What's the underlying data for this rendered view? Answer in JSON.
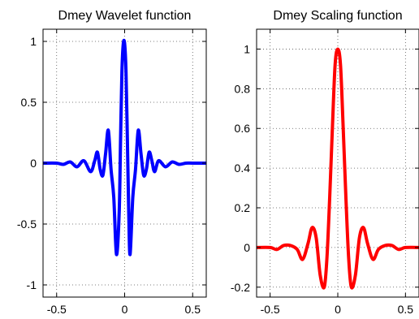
{
  "figure": {
    "background": "#ffffff"
  },
  "chart_data": [
    {
      "type": "line",
      "title": "Dmey Wavelet function",
      "xlabel": "",
      "ylabel": "",
      "xlim": [
        -0.6,
        0.6
      ],
      "ylim": [
        -1.1,
        1.1
      ],
      "xticks": [
        -0.5,
        0,
        0.5
      ],
      "yticks": [
        -1,
        -0.5,
        0,
        0.5,
        1
      ],
      "xtick_labels": [
        "-0.5",
        "0",
        "0.5"
      ],
      "ytick_labels": [
        "-1",
        "-0.5",
        "0",
        "0.5",
        "1"
      ],
      "grid": true,
      "series": [
        {
          "color": "#0000ff",
          "x": [
            -0.6,
            -0.5,
            -0.45,
            -0.4,
            -0.35,
            -0.3,
            -0.25,
            -0.22,
            -0.2,
            -0.18,
            -0.16,
            -0.14,
            -0.12,
            -0.1,
            -0.08,
            -0.06,
            -0.04,
            -0.03,
            -0.02,
            -0.01,
            0,
            0.01,
            0.02,
            0.03,
            0.04,
            0.06,
            0.08,
            0.1,
            0.12,
            0.14,
            0.16,
            0.18,
            0.2,
            0.22,
            0.25,
            0.3,
            0.35,
            0.4,
            0.45,
            0.5,
            0.6
          ],
          "y": [
            0,
            0,
            -0.01,
            0.01,
            -0.03,
            0.02,
            -0.07,
            0.02,
            0.09,
            -0.05,
            -0.1,
            0.08,
            0.27,
            -0.05,
            -0.28,
            -0.75,
            -0.4,
            0.2,
            0.75,
            0.98,
            0.98,
            0.75,
            0.2,
            -0.4,
            -0.75,
            -0.28,
            -0.05,
            0.27,
            0.08,
            -0.1,
            -0.05,
            0.09,
            0.02,
            -0.07,
            0.02,
            -0.03,
            0.01,
            -0.01,
            0,
            0,
            0
          ]
        }
      ]
    },
    {
      "type": "line",
      "title": "Dmey Scaling function",
      "xlabel": "",
      "ylabel": "",
      "xlim": [
        -0.6,
        0.6
      ],
      "ylim": [
        -0.25,
        1.1
      ],
      "xticks": [
        -0.5,
        0,
        0.5
      ],
      "yticks": [
        -0.2,
        0,
        0.2,
        0.4,
        0.6,
        0.8,
        1
      ],
      "xtick_labels": [
        "-0.5",
        "0",
        "0.5"
      ],
      "ytick_labels": [
        "-0.2",
        "0",
        "0.2",
        "0.4",
        "0.6",
        "0.8",
        "1"
      ],
      "grid": true,
      "series": [
        {
          "color": "#ff0000",
          "x": [
            -0.6,
            -0.5,
            -0.45,
            -0.4,
            -0.35,
            -0.3,
            -0.26,
            -0.22,
            -0.19,
            -0.16,
            -0.13,
            -0.1,
            -0.08,
            -0.06,
            -0.04,
            -0.02,
            0,
            0.02,
            0.04,
            0.06,
            0.08,
            0.1,
            0.13,
            0.16,
            0.19,
            0.22,
            0.26,
            0.3,
            0.35,
            0.4,
            0.45,
            0.5,
            0.6
          ],
          "y": [
            0,
            0,
            -0.01,
            0.01,
            0.01,
            -0.01,
            -0.06,
            0.02,
            0.1,
            0.05,
            -0.14,
            -0.2,
            -0.05,
            0.25,
            0.6,
            0.92,
            1.0,
            0.92,
            0.6,
            0.25,
            -0.05,
            -0.2,
            -0.14,
            0.05,
            0.1,
            0.02,
            -0.06,
            -0.01,
            0.01,
            0.01,
            -0.01,
            0,
            0
          ]
        }
      ]
    }
  ]
}
